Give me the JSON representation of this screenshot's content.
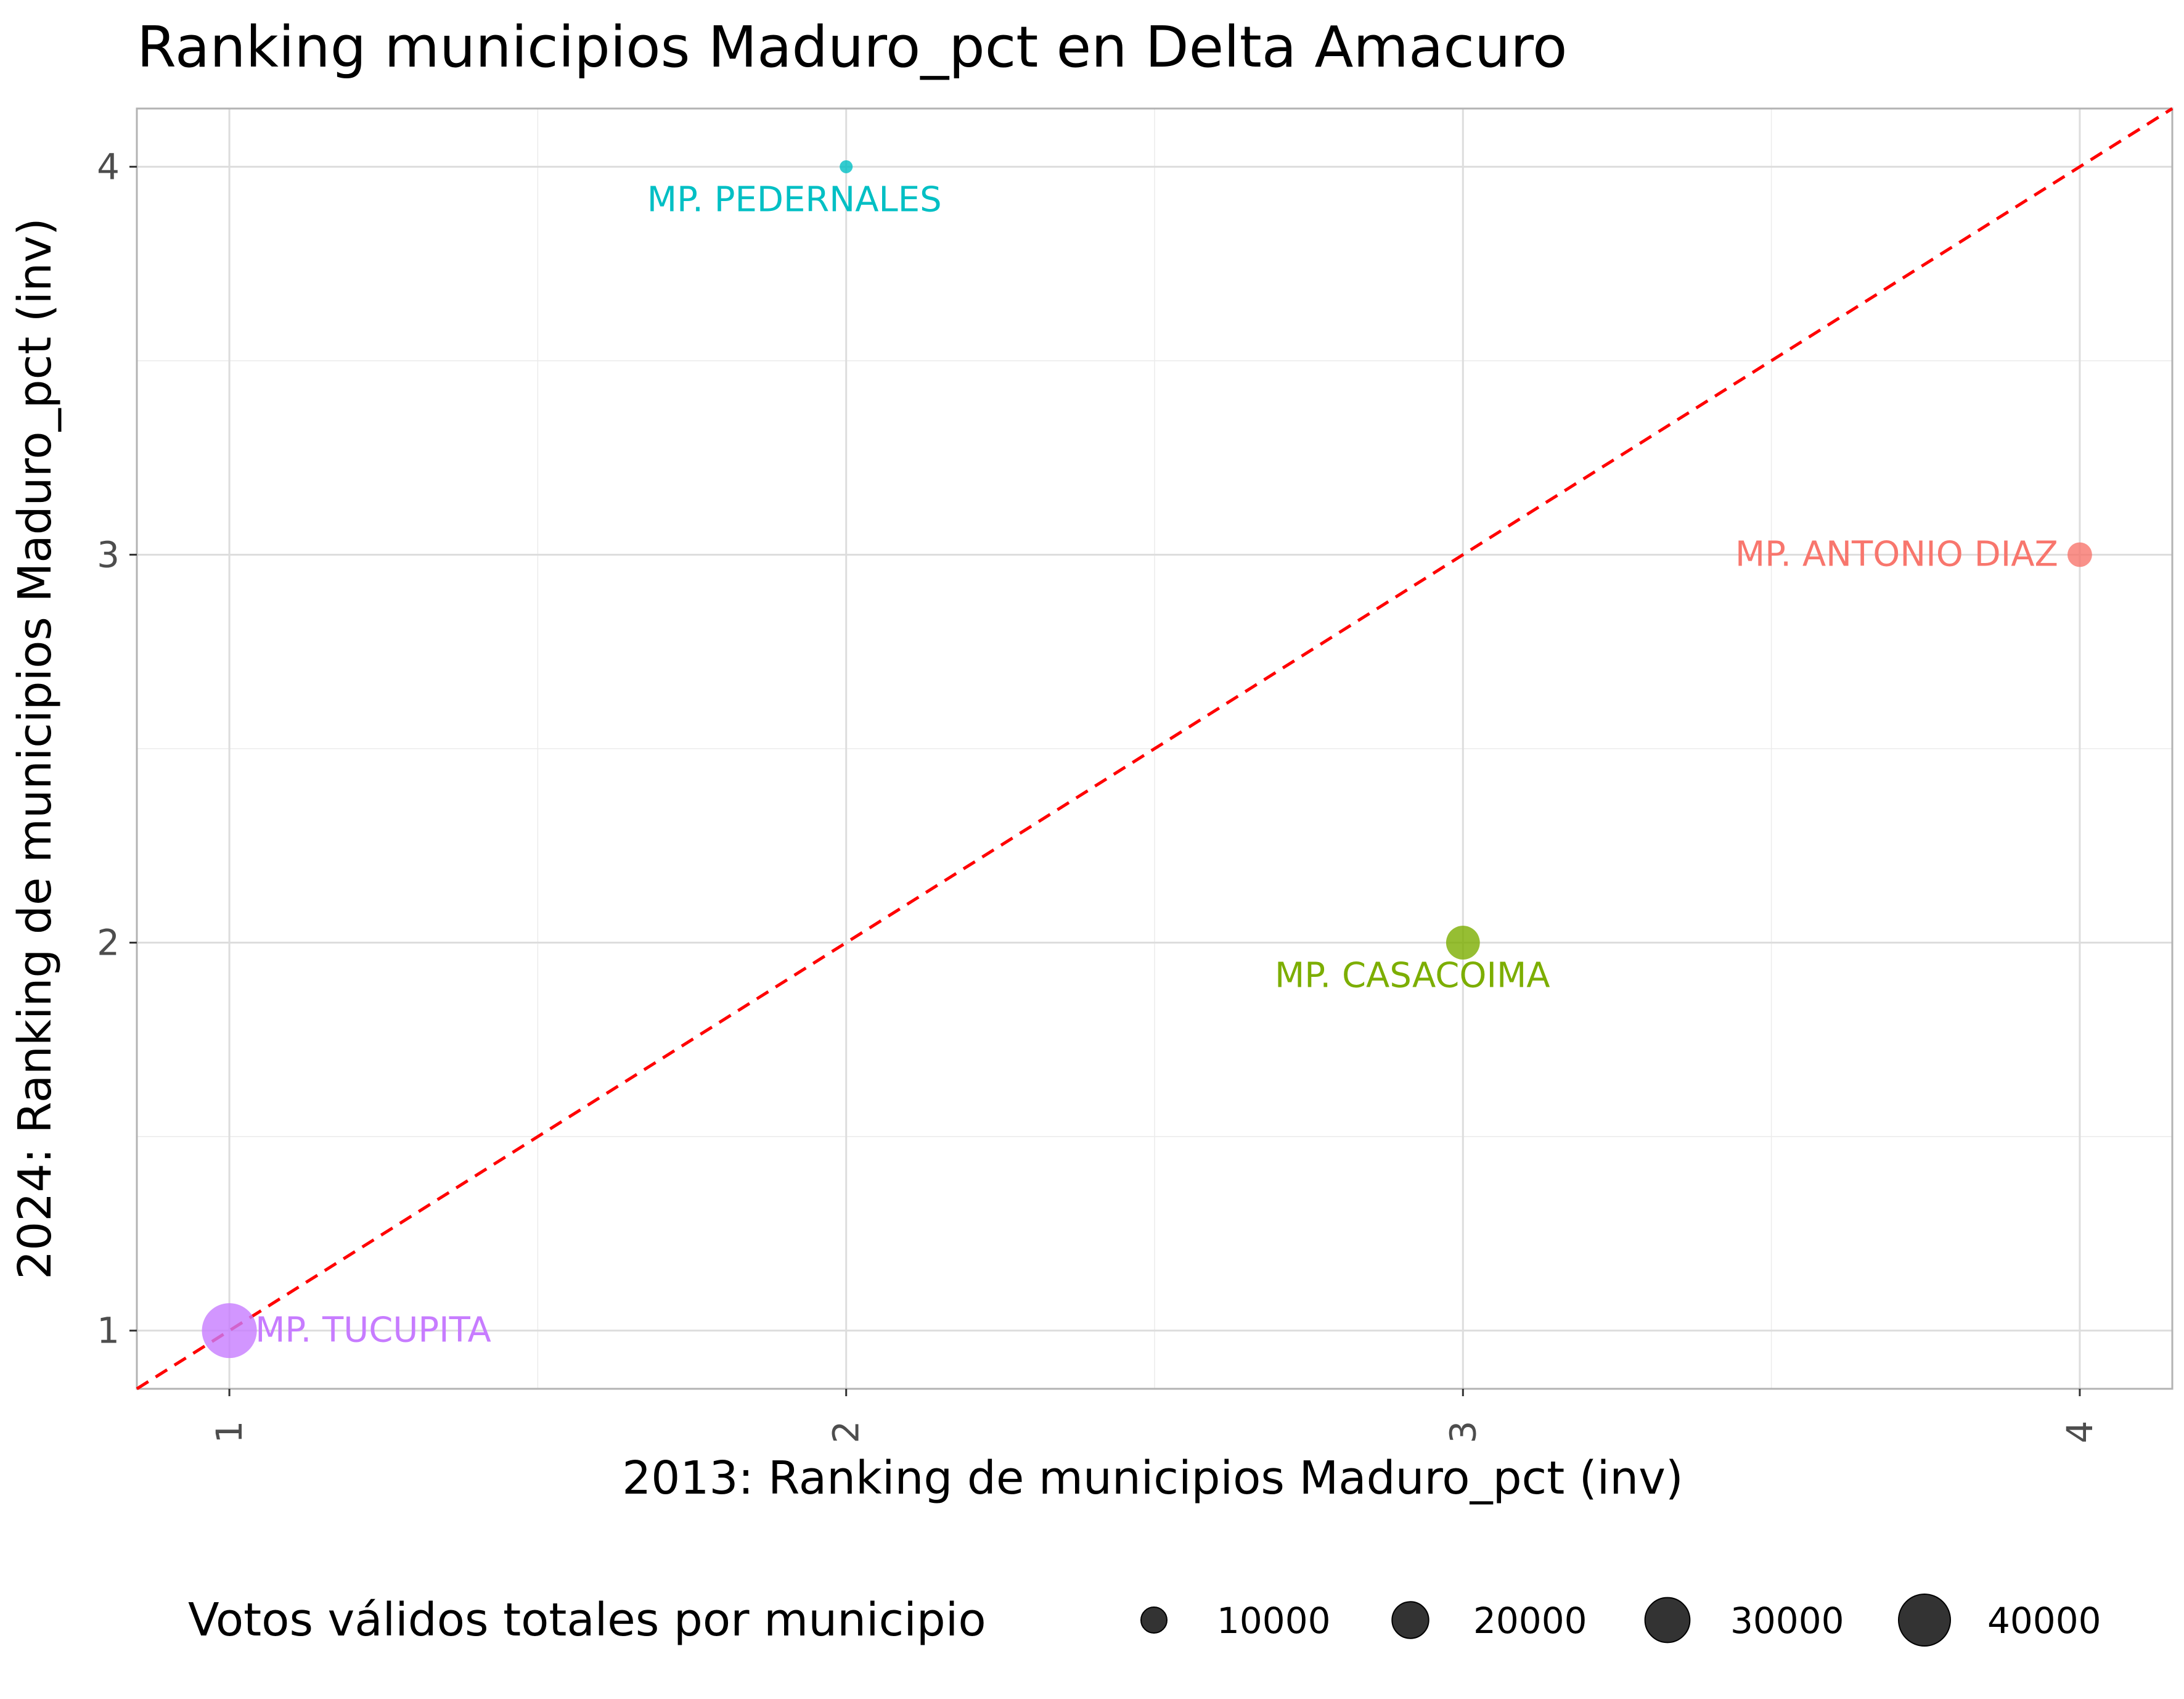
{
  "chart_data": {
    "type": "scatter",
    "title": "Ranking municipios Maduro_pct en Delta Amacuro",
    "xlabel": "2013: Ranking de municipios Maduro_pct (inv)",
    "ylabel": "2024: Ranking de municipios Maduro_pct (inv)",
    "xlim": [
      0.85,
      4.15
    ],
    "ylim": [
      0.85,
      4.15
    ],
    "x_ticks": [
      1,
      2,
      3,
      4
    ],
    "y_ticks": [
      1,
      2,
      3,
      4
    ],
    "x_tick_labels": [
      "1",
      "2",
      "3",
      "4"
    ],
    "y_tick_labels": [
      "1",
      "2",
      "3",
      "4"
    ],
    "grid": true,
    "reference_line": {
      "type": "identity",
      "style": "dashed",
      "color": "#ff0000"
    },
    "points": [
      {
        "label": "MP. ANTONIO DIAZ",
        "x": 4,
        "y": 3,
        "votes": 9000,
        "color": "#f8766d"
      },
      {
        "label": "MP. CASACOIMA",
        "x": 3,
        "y": 2,
        "votes": 17000,
        "color": "#7cae00"
      },
      {
        "label": "MP. PEDERNALES",
        "x": 2,
        "y": 4,
        "votes": 2500,
        "color": "#00bfc4"
      },
      {
        "label": "MP. TUCUPITA",
        "x": 1,
        "y": 1,
        "votes": 45000,
        "color": "#c77cff"
      }
    ],
    "legend": {
      "title": "Votos válidos totales por municipio",
      "placement": "bottom",
      "items": [
        {
          "label": "10000",
          "value": 10000
        },
        {
          "label": "20000",
          "value": 20000
        },
        {
          "label": "30000",
          "value": 30000
        },
        {
          "label": "40000",
          "value": 40000
        }
      ]
    }
  }
}
